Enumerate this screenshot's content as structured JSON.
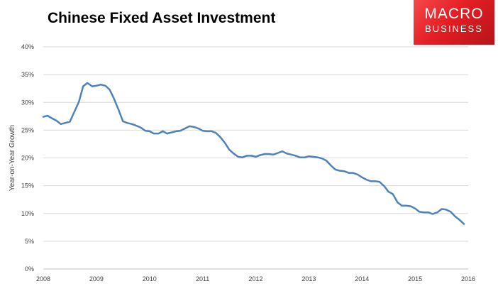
{
  "chart_data": {
    "type": "line",
    "title": "Chinese Fixed Asset Investment",
    "ylabel": "Year-on-Year Growth",
    "xlabel": "",
    "xlim": [
      2008,
      2016
    ],
    "ylim": [
      0,
      40
    ],
    "grid": true,
    "x_ticks": [
      "2008",
      "2009",
      "2010",
      "2011",
      "2012",
      "2013",
      "2014",
      "2015",
      "2016"
    ],
    "y_ticks": [
      "0%",
      "5%",
      "10%",
      "15%",
      "20%",
      "25%",
      "30%",
      "35%",
      "40%"
    ],
    "series_color": "#4f81bd",
    "series": [
      {
        "x": [
          2008.0,
          2008.08,
          2008.17,
          2008.25,
          2008.33,
          2008.5,
          2008.67,
          2008.75,
          2008.83,
          2008.92,
          2009.0,
          2009.08,
          2009.17,
          2009.25,
          2009.33,
          2009.42,
          2009.5,
          2009.58,
          2009.67,
          2009.75,
          2009.83,
          2009.92,
          2010.0,
          2010.08,
          2010.17,
          2010.25,
          2010.33,
          2010.42,
          2010.5,
          2010.58,
          2010.67,
          2010.75,
          2010.83,
          2010.92,
          2011.0,
          2011.08,
          2011.17,
          2011.25,
          2011.33,
          2011.42,
          2011.5,
          2011.58,
          2011.67,
          2011.75,
          2011.83,
          2011.92,
          2012.0,
          2012.08,
          2012.17,
          2012.25,
          2012.33,
          2012.42,
          2012.5,
          2012.58,
          2012.67,
          2012.75,
          2012.83,
          2012.92,
          2013.0,
          2013.08,
          2013.17,
          2013.25,
          2013.33,
          2013.42,
          2013.5,
          2013.58,
          2013.67,
          2013.75,
          2013.83,
          2013.92,
          2014.0,
          2014.08,
          2014.17,
          2014.25,
          2014.33,
          2014.42,
          2014.5,
          2014.58,
          2014.67,
          2014.75,
          2014.83,
          2014.92,
          2015.0,
          2015.08,
          2015.17,
          2015.25,
          2015.33,
          2015.42,
          2015.5,
          2015.58,
          2015.67,
          2015.75,
          2015.83,
          2015.92
        ],
        "y": [
          27.4,
          27.6,
          27.1,
          26.7,
          26.1,
          26.5,
          30.1,
          32.9,
          33.5,
          32.9,
          33.0,
          33.2,
          33.0,
          32.3,
          30.7,
          28.6,
          26.6,
          26.3,
          26.1,
          25.8,
          25.5,
          24.9,
          24.8,
          24.4,
          24.4,
          24.8,
          24.4,
          24.6,
          24.8,
          24.9,
          25.3,
          25.7,
          25.6,
          25.3,
          24.9,
          24.8,
          24.8,
          24.5,
          23.8,
          22.7,
          21.5,
          20.8,
          20.2,
          20.1,
          20.4,
          20.4,
          20.2,
          20.5,
          20.7,
          20.7,
          20.6,
          20.9,
          21.2,
          20.8,
          20.6,
          20.4,
          20.1,
          20.1,
          20.3,
          20.2,
          20.1,
          19.9,
          19.5,
          18.6,
          17.9,
          17.7,
          17.6,
          17.3,
          17.3,
          17.0,
          16.5,
          16.1,
          15.8,
          15.8,
          15.7,
          14.9,
          13.9,
          13.5,
          12.0,
          11.4,
          11.4,
          11.3,
          10.9,
          10.3,
          10.2,
          10.2,
          9.9,
          10.2,
          10.8,
          10.7,
          10.3,
          9.5,
          8.9,
          8.1
        ]
      }
    ]
  },
  "logo": {
    "line1": "MACRO",
    "line2": "BUSINESS"
  }
}
